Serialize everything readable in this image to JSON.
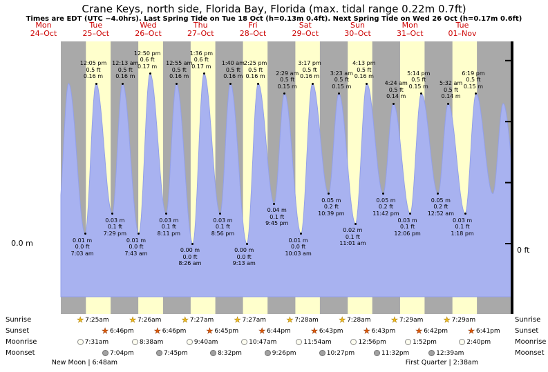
{
  "title": "Crane Keys, north side, Florida Bay, Florida (max. tidal range 0.22m 0.7ft)",
  "subtitle": "Times are EDT (UTC −4.0hrs). Last Spring Tide on Tue 18 Oct (h=0.13m 0.4ft). Next Spring Tide on Wed 26 Oct (h=0.17m 0.6ft)",
  "axis": {
    "left_zero_label": "0.0 m",
    "right_zero_label": "0 ft"
  },
  "days": [
    {
      "dow": "Mon",
      "date": "24–Oct"
    },
    {
      "dow": "Tue",
      "date": "25–Oct"
    },
    {
      "dow": "Wed",
      "date": "26–Oct"
    },
    {
      "dow": "Thu",
      "date": "27–Oct"
    },
    {
      "dow": "Fri",
      "date": "28–Oct"
    },
    {
      "dow": "Sat",
      "date": "29–Oct"
    },
    {
      "dow": "Sun",
      "date": "30–Oct"
    },
    {
      "dow": "Mon",
      "date": "31–Oct"
    },
    {
      "dow": "Tue",
      "date": "01–Nov"
    }
  ],
  "chart_data": {
    "type": "area",
    "title": "Tide height curve, Mon 24 Oct – Tue 01 Nov",
    "units": {
      "primary": "m",
      "secondary": "ft"
    },
    "ylim_m": [
      -0.053,
      0.202
    ],
    "colors": {
      "night_band": "#a9a9a9",
      "day_band": "#ffffcc",
      "tide_fill": "#a8b2f0",
      "tide_stroke": "#93a0e8",
      "day_label_red": "#cc0000"
    },
    "tide_events": [
      {
        "day": 0,
        "t": "6:45pm",
        "h": 0.03,
        "kind": "low"
      },
      {
        "day": 0,
        "t": "11:30pm",
        "h": 0.16,
        "kind": "high"
      },
      {
        "day": 1,
        "t": "7:03am",
        "h": 0.01,
        "kind": "low",
        "lines": [
          "0.01 m",
          "0.0 ft",
          "7:03 am"
        ]
      },
      {
        "day": 1,
        "t": "12:05pm",
        "h": 0.16,
        "kind": "high",
        "lines": [
          "12:05 pm",
          "0.5 ft",
          "0.16 m"
        ]
      },
      {
        "day": 1,
        "t": "7:29pm",
        "h": 0.03,
        "kind": "low",
        "lines": [
          "0.03 m",
          "0.1 ft",
          "7:29 pm"
        ]
      },
      {
        "day": 2,
        "t": "12:13am",
        "h": 0.16,
        "kind": "high",
        "lines": [
          "12:13 am",
          "0.5 ft",
          "0.16 m"
        ]
      },
      {
        "day": 2,
        "t": "7:43am",
        "h": 0.01,
        "kind": "low",
        "lines": [
          "0.01 m",
          "0.0 ft",
          "7:43 am"
        ]
      },
      {
        "day": 2,
        "t": "12:50pm",
        "h": 0.17,
        "kind": "high",
        "lines": [
          "12:50 pm",
          "0.6 ft",
          "0.17 m"
        ]
      },
      {
        "day": 2,
        "t": "8:11pm",
        "h": 0.03,
        "kind": "low",
        "lines": [
          "0.03 m",
          "0.1 ft",
          "8:11 pm"
        ]
      },
      {
        "day": 3,
        "t": "12:55am",
        "h": 0.16,
        "kind": "high",
        "lines": [
          "12:55 am",
          "0.5 ft",
          "0.16 m"
        ]
      },
      {
        "day": 3,
        "t": "8:26am",
        "h": 0.0,
        "kind": "low",
        "lines": [
          "0.00 m",
          "0.0 ft",
          "8:26 am"
        ]
      },
      {
        "day": 3,
        "t": "1:36pm",
        "h": 0.17,
        "kind": "high",
        "lines": [
          "1:36 pm",
          "0.6 ft",
          "0.17 m"
        ]
      },
      {
        "day": 3,
        "t": "8:56pm",
        "h": 0.03,
        "kind": "low",
        "lines": [
          "0.03 m",
          "0.1 ft",
          "8:56 pm"
        ]
      },
      {
        "day": 4,
        "t": "1:40am",
        "h": 0.16,
        "kind": "high",
        "lines": [
          "1:40 am",
          "0.5 ft",
          "0.16 m"
        ]
      },
      {
        "day": 4,
        "t": "9:13am",
        "h": 0.0,
        "kind": "low",
        "lines": [
          "0.00 m",
          "0.0 ft",
          "9:13 am"
        ]
      },
      {
        "day": 4,
        "t": "2:25pm",
        "h": 0.16,
        "kind": "high",
        "lines": [
          "2:25 pm",
          "0.5 ft",
          "0.16 m"
        ]
      },
      {
        "day": 4,
        "t": "9:45pm",
        "h": 0.04,
        "kind": "low",
        "lines": [
          "0.04 m",
          "0.1 ft",
          "9:45 pm"
        ]
      },
      {
        "day": 5,
        "t": "2:29am",
        "h": 0.15,
        "kind": "high",
        "lines": [
          "2:29 am",
          "0.5 ft",
          "0.15 m"
        ]
      },
      {
        "day": 5,
        "t": "10:03am",
        "h": 0.01,
        "kind": "low",
        "lines": [
          "0.01 m",
          "0.0 ft",
          "10:03 am"
        ]
      },
      {
        "day": 5,
        "t": "3:17pm",
        "h": 0.16,
        "kind": "high",
        "lines": [
          "3:17 pm",
          "0.5 ft",
          "0.16 m"
        ]
      },
      {
        "day": 5,
        "t": "10:39pm",
        "h": 0.05,
        "kind": "low",
        "lines": [
          "0.05 m",
          "0.2 ft",
          "10:39 pm"
        ]
      },
      {
        "day": 6,
        "t": "3:23am",
        "h": 0.15,
        "kind": "high",
        "lines": [
          "3:23 am",
          "0.5 ft",
          "0.15 m"
        ]
      },
      {
        "day": 6,
        "t": "11:01am",
        "h": 0.02,
        "kind": "low",
        "lines": [
          "0.02 m",
          "0.1 ft",
          "11:01 am"
        ]
      },
      {
        "day": 6,
        "t": "4:13pm",
        "h": 0.16,
        "kind": "high",
        "lines": [
          "4:13 pm",
          "0.5 ft",
          "0.16 m"
        ]
      },
      {
        "day": 6,
        "t": "11:42pm",
        "h": 0.05,
        "kind": "low",
        "lines": [
          "0.05 m",
          "0.2 ft",
          "11:42 pm"
        ]
      },
      {
        "day": 7,
        "t": "4:24am",
        "h": 0.14,
        "kind": "high",
        "lines": [
          "4:24 am",
          "0.5 ft",
          "0.14 m"
        ]
      },
      {
        "day": 7,
        "t": "12:06pm",
        "h": 0.03,
        "kind": "low",
        "lines": [
          "0.03 m",
          "0.1 ft",
          "12:06 pm"
        ]
      },
      {
        "day": 7,
        "t": "5:14pm",
        "h": 0.15,
        "kind": "high",
        "lines": [
          "5:14 pm",
          "0.5 ft",
          "0.15 m"
        ]
      },
      {
        "day": 8,
        "t": "12:52am",
        "h": 0.05,
        "kind": "low",
        "lines": [
          "0.05 m",
          "0.2 ft",
          "12:52 am"
        ]
      },
      {
        "day": 8,
        "t": "5:32am",
        "h": 0.14,
        "kind": "high",
        "lines": [
          "5:32 am",
          "0.5 ft",
          "0.14 m"
        ]
      },
      {
        "day": 8,
        "t": "1:18pm",
        "h": 0.03,
        "kind": "low",
        "lines": [
          "0.03 m",
          "0.1 ft",
          "1:18 pm"
        ]
      },
      {
        "day": 8,
        "t": "6:19pm",
        "h": 0.15,
        "kind": "high",
        "lines": [
          "6:19 pm",
          "0.5 ft",
          "0.15 m"
        ]
      },
      {
        "day": 9,
        "t": "2:00am",
        "h": 0.05,
        "kind": "low"
      },
      {
        "day": 9,
        "t": "6:45am",
        "h": 0.14,
        "kind": "high"
      },
      {
        "day": 9,
        "t": "2:00pm",
        "h": 0.03,
        "kind": "low"
      }
    ]
  },
  "astro": {
    "rows": [
      {
        "key": "sunrise",
        "label": "Sunrise",
        "icon": "sunrise-star-icon",
        "glyph": "★",
        "events": [
          {
            "day": 1,
            "t": "7:25am"
          },
          {
            "day": 2,
            "t": "7:26am"
          },
          {
            "day": 3,
            "t": "7:27am"
          },
          {
            "day": 4,
            "t": "7:27am"
          },
          {
            "day": 5,
            "t": "7:28am"
          },
          {
            "day": 6,
            "t": "7:28am"
          },
          {
            "day": 7,
            "t": "7:29am"
          },
          {
            "day": 8,
            "t": "7:29am"
          }
        ]
      },
      {
        "key": "sunset",
        "label": "Sunset",
        "icon": "sunset-star-icon",
        "glyph": "★",
        "events": [
          {
            "day": 1,
            "t": "6:46pm"
          },
          {
            "day": 2,
            "t": "6:46pm"
          },
          {
            "day": 3,
            "t": "6:45pm"
          },
          {
            "day": 4,
            "t": "6:44pm"
          },
          {
            "day": 5,
            "t": "6:43pm"
          },
          {
            "day": 6,
            "t": "6:43pm"
          },
          {
            "day": 7,
            "t": "6:42pm"
          },
          {
            "day": 8,
            "t": "6:41pm"
          }
        ]
      },
      {
        "key": "moonrise",
        "label": "Moonrise",
        "icon": "moonrise-icon",
        "glyph": "",
        "events": [
          {
            "day": 1,
            "t": "7:31am"
          },
          {
            "day": 2,
            "t": "8:38am"
          },
          {
            "day": 3,
            "t": "9:40am"
          },
          {
            "day": 4,
            "t": "10:47am"
          },
          {
            "day": 5,
            "t": "11:54am"
          },
          {
            "day": 6,
            "t": "12:56pm"
          },
          {
            "day": 7,
            "t": "1:52pm"
          },
          {
            "day": 8,
            "t": "2:40pm"
          }
        ]
      },
      {
        "key": "moonset",
        "label": "Moonset",
        "icon": "moonset-icon",
        "glyph": "",
        "events": [
          {
            "day": 1,
            "t": "7:04pm"
          },
          {
            "day": 2,
            "t": "7:45pm"
          },
          {
            "day": 3,
            "t": "8:32pm"
          },
          {
            "day": 4,
            "t": "9:26pm"
          },
          {
            "day": 5,
            "t": "10:27pm"
          },
          {
            "day": 6,
            "t": "11:32pm"
          },
          {
            "day": 8,
            "t": "12:39am"
          }
        ]
      }
    ],
    "phases": [
      {
        "day": 1,
        "t": "6:48am",
        "label": "New Moon | 6:48am"
      },
      {
        "day": 8,
        "t": "2:38am",
        "label": "First Quarter | 2:38am"
      }
    ]
  }
}
